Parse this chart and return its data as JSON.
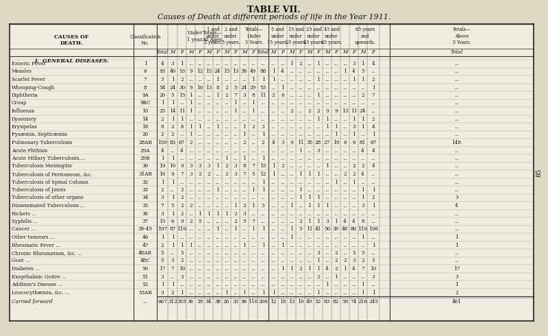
{
  "title1": "TABLE VII.",
  "title2": "Causes of Death at different periods of life in the Year 1911.",
  "bg_color": "#ddd8c4",
  "table_bg": "#f0ece0",
  "section_title": "I.  GENERAL DISEASES.",
  "rows": [
    [
      "Enteric Fever",
      "1",
      "4",
      "3",
      "1",
      "...",
      "...",
      "...",
      "...",
      "...",
      "...",
      "...",
      "...",
      "...",
      "...",
      "...",
      "1",
      "2",
      "...",
      "1",
      "...",
      "...",
      "...",
      "3",
      "1",
      "4"
    ],
    [
      "Measles",
      "6",
      "93",
      "40",
      "53",
      "9",
      "12",
      "15",
      "24",
      "15",
      "13",
      "39",
      "49",
      "88",
      "1",
      "4",
      "...",
      "...",
      "...",
      "...",
      "...",
      "...",
      "1",
      "4",
      "5"
    ],
    [
      "Scarlet Fever",
      "7",
      "3",
      "1",
      "2",
      "...",
      "...",
      "...",
      "1",
      "...",
      "...",
      "...",
      "1",
      "1",
      "1",
      "...",
      "...",
      "...",
      "...",
      "1",
      "...",
      "...",
      "...",
      "1",
      "1",
      "2"
    ],
    [
      "Whooping-Cough",
      "8",
      "54",
      "24",
      "30",
      "9",
      "16",
      "13",
      "8",
      "2",
      "5",
      "24",
      "29",
      "53",
      "...",
      "1",
      "...",
      "...",
      "...",
      "...",
      "...",
      "...",
      "...",
      "...",
      "...",
      "1"
    ],
    [
      "Diphtheria",
      "9A",
      "20",
      "5",
      "15",
      "1",
      "...",
      "...",
      "1",
      "2",
      "7",
      "3",
      "8",
      "11",
      "2",
      "6",
      "...",
      "...",
      "...",
      "1",
      "...",
      "...",
      "...",
      "...",
      "2",
      "7"
    ],
    [
      "Croup",
      "9BC",
      "1",
      "1",
      "...",
      "1",
      "...",
      "...",
      "...",
      "...",
      "1",
      "...",
      "1",
      "...",
      "...",
      "...",
      "...",
      "...",
      "...",
      "...",
      "...",
      "...",
      "...",
      "...",
      "...",
      "..."
    ],
    [
      "Influenza",
      "10",
      "25",
      "14",
      "11",
      "1",
      "...",
      "...",
      "...",
      "...",
      "1",
      "...",
      "1",
      "...",
      "...",
      "...",
      "2",
      "...",
      "2",
      "2",
      "9",
      "9",
      "13",
      "11",
      "24"
    ],
    [
      "Dysentery",
      "14",
      "2",
      "1",
      "1",
      "...",
      "...",
      "...",
      "...",
      "...",
      "...",
      "...",
      "...",
      "...",
      "...",
      "...",
      "...",
      "...",
      "...",
      "1",
      "1",
      "...",
      "...",
      "1",
      "1",
      "2"
    ],
    [
      "Erysipelas",
      "18",
      "8",
      "2",
      "6",
      "1",
      "1",
      "...",
      "1",
      "...",
      "...",
      "1",
      "2",
      "3",
      "...",
      "...",
      "...",
      "...",
      "...",
      "...",
      "1",
      "1",
      "...",
      "3",
      "1",
      "4"
    ],
    [
      "Pyaæmia, Septicæmia",
      "20",
      "2",
      "2",
      "...",
      "1",
      "...",
      "...",
      "...",
      "...",
      "...",
      "1",
      "...",
      "1",
      "...",
      "...",
      "...",
      "...",
      "...",
      "...",
      "...",
      "1",
      "...",
      "1",
      "...",
      "1"
    ],
    [
      "Pulmonary Tuberculosis",
      "28AB",
      "150",
      "83",
      "67",
      "2",
      "...",
      "...",
      "...",
      "...",
      "...",
      "2",
      "...",
      "2",
      "4",
      "3",
      "9",
      "11",
      "35",
      "28",
      "27",
      "19",
      "6",
      "6",
      "81",
      "67",
      "148"
    ],
    [
      "Acute Phthisis",
      "29A",
      "4",
      "...",
      "4",
      "...",
      "...",
      "...",
      "...",
      "...",
      "...",
      "...",
      "...",
      "...",
      "...",
      "...",
      "...",
      "1",
      "...",
      "3",
      "...",
      "...",
      "...",
      "...",
      "4",
      "4"
    ],
    [
      "Acute Miliary Tuberculosis,...",
      "29B",
      "1",
      "1",
      "...",
      "...",
      "...",
      "...",
      "...",
      "1",
      "...",
      "1",
      "...",
      "1",
      "...",
      "...",
      "...",
      "...",
      "...",
      "...",
      "...",
      "...",
      "...",
      "...",
      "...",
      "..."
    ],
    [
      "Tuberculosis Meningitis",
      "30",
      "19",
      "10",
      "9",
      "3",
      "3",
      "3",
      "1",
      "2",
      "3",
      "8",
      "7",
      "15",
      "1",
      "2",
      "...",
      "...",
      "...",
      "...",
      "1",
      "...",
      "...",
      "2",
      "2",
      "4"
    ],
    [
      "Tuberculosis of Peritoneum, &c.",
      "31AB",
      "16",
      "9",
      "7",
      "3",
      "2",
      "2",
      "...",
      "2",
      "3",
      "7",
      "5",
      "12",
      "1",
      "...",
      "...",
      "1",
      "1",
      "1",
      "...",
      "...",
      "2",
      "2",
      "4"
    ],
    [
      "Tuberculosis of Spinal Column",
      "32",
      "1",
      "1",
      "...",
      "...",
      "...",
      "...",
      "...",
      "...",
      "...",
      "...",
      "...",
      "1",
      "...",
      "...",
      "...",
      "...",
      "...",
      "...",
      "...",
      "1",
      "...",
      "1"
    ],
    [
      "Tuberculosis of Joints",
      "33",
      "2",
      "...",
      "2",
      "...",
      "...",
      "...",
      "1",
      "...",
      "...",
      "...",
      "1",
      "1",
      "...",
      "...",
      "...",
      "1",
      "...",
      "...",
      "...",
      "...",
      "...",
      "...",
      "1",
      "1"
    ],
    [
      "Tuberculosis of other organs",
      "34",
      "3",
      "1",
      "2",
      "...",
      "...",
      "...",
      "...",
      "...",
      "...",
      "...",
      "...",
      "...",
      "...",
      "...",
      "...",
      "1",
      "1",
      "1",
      "...",
      "...",
      "...",
      "...",
      "1",
      "2",
      "3"
    ],
    [
      "Disseminated Tuberculosis ...",
      "35",
      "7",
      "5",
      "2",
      "2",
      "...",
      "...",
      "...",
      "...",
      "1",
      "2",
      "1",
      "3",
      "...",
      "...",
      "1",
      "...",
      "1",
      "1",
      "1",
      "...",
      "...",
      "...",
      "3",
      "1",
      "4"
    ],
    [
      "Rickets ...",
      "36",
      "3",
      "1",
      "2",
      "...",
      "1",
      "1",
      "1",
      "1",
      "2",
      "3",
      "...",
      "...",
      "...",
      "...",
      "...",
      "...",
      "...",
      "...",
      "...",
      "...",
      "...",
      "...",
      "..."
    ],
    [
      "Syphilis ...",
      "37",
      "15",
      "6",
      "9",
      "2",
      "5",
      "...",
      "...",
      "...",
      "2",
      "5",
      "7",
      "...",
      "...",
      "...",
      "...",
      "2",
      "1",
      "1",
      "3",
      "1",
      "4",
      "4",
      "8"
    ],
    [
      "Cancer ...",
      "39-45",
      "197",
      "87",
      "110",
      "...",
      "...",
      "...",
      "1",
      "...",
      "1",
      "...",
      "1",
      "1",
      "...",
      "...",
      "1",
      "5",
      "11",
      "41",
      "50",
      "39",
      "48",
      "86",
      "110",
      "196"
    ],
    [
      "Other tumours ...",
      "46",
      "1",
      "1",
      "...",
      "...",
      "...",
      "...",
      "...",
      "...",
      "...",
      "...",
      "...",
      "...",
      "...",
      "...",
      "1",
      "...",
      "...",
      "...",
      "...",
      "...",
      "...",
      "...",
      "1",
      "...",
      "1"
    ],
    [
      "Rheumatic Fever ...",
      "47",
      "2",
      "1",
      "1",
      "1",
      "...",
      "...",
      "...",
      "...",
      "...",
      "1",
      "...",
      "1",
      "...",
      "1",
      "...",
      "...",
      "...",
      "...",
      "...",
      "...",
      "...",
      "...",
      "...",
      "1",
      "1"
    ],
    [
      "Chronic Rheumatism, &c. ...",
      "48AB",
      "5",
      "...",
      "5",
      "...",
      "...",
      "...",
      "...",
      "...",
      "...",
      "...",
      "...",
      "...",
      "...",
      "...",
      "...",
      "...",
      "...",
      "3",
      "...",
      "2",
      "...",
      "5",
      "5"
    ],
    [
      "Gout ...",
      "48C",
      "5",
      "3",
      "2",
      "...",
      "...",
      "...",
      "...",
      "...",
      "...",
      "...",
      "...",
      "...",
      "...",
      "...",
      "...",
      "...",
      "...",
      "1",
      "...",
      "2",
      "2",
      "3",
      "2",
      "5"
    ],
    [
      "Diabetes ...",
      "50",
      "17",
      "7",
      "10",
      "...",
      "...",
      "...",
      "...",
      "...",
      "...",
      "...",
      "...",
      "...",
      "...",
      "1",
      "1",
      "2",
      "1",
      "1",
      "4",
      "2",
      "1",
      "4",
      "7",
      "10",
      "17"
    ],
    [
      "Exopthalmic Goitre ...",
      "51",
      "3",
      "...",
      "3",
      "...",
      "...",
      "...",
      "...",
      "...",
      "...",
      "...",
      "...",
      "...",
      "...",
      "...",
      "...",
      "...",
      "...",
      "2",
      "...",
      "1",
      "...",
      "...",
      "...",
      "3",
      "3"
    ],
    [
      "Addison's Disease ...",
      "52",
      "1",
      "1",
      "...",
      "...",
      "...",
      "...",
      "...",
      "...",
      "...",
      "...",
      "...",
      "...",
      "...",
      "...",
      "...",
      "...",
      "...",
      "...",
      "1",
      "...",
      "...",
      "...",
      "1",
      "...",
      "1"
    ],
    [
      "Leucocythæmia, &c. ...",
      "53AB",
      "3",
      "2",
      "1",
      "...",
      "...",
      "...",
      "...",
      "1",
      "...",
      "1",
      "...",
      "1",
      "1",
      "...",
      "...",
      "...",
      "...",
      "1",
      "...",
      "...",
      "...",
      "...",
      "1",
      "1",
      "2"
    ]
  ],
  "footer_row": [
    "Carried forward",
    "...",
    "667",
    "312",
    "355",
    "36",
    "39",
    "34",
    "38",
    "26",
    "33",
    "96",
    "110",
    "206",
    "12",
    "18",
    "13",
    "19",
    "49",
    "52",
    "83",
    "82",
    "59",
    "74",
    "216",
    "245",
    "461"
  ]
}
